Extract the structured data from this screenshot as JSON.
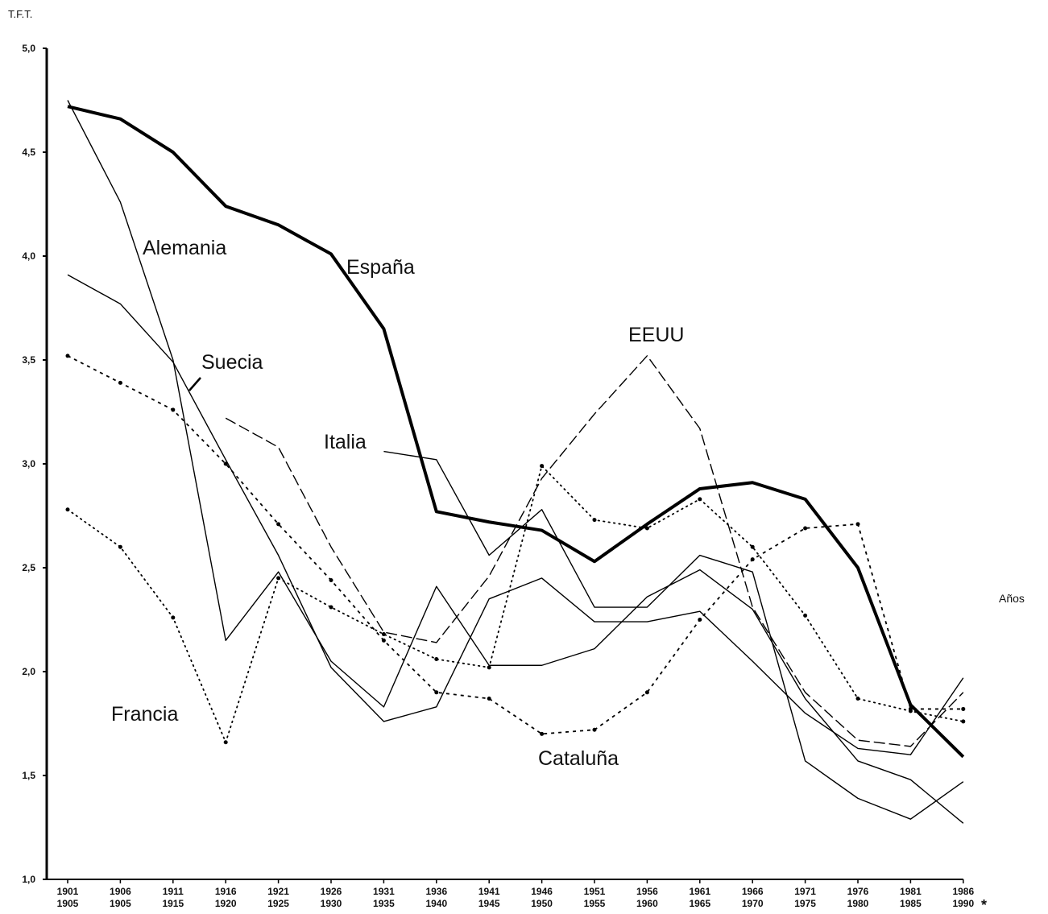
{
  "chart_data": {
    "type": "line",
    "y_label": "T.F.T.",
    "x_label": "Años",
    "footnote": "*",
    "categories": [
      [
        "1901",
        "1905"
      ],
      [
        "1906",
        "1905"
      ],
      [
        "1911",
        "1915"
      ],
      [
        "1916",
        "1920"
      ],
      [
        "1921",
        "1925"
      ],
      [
        "1926",
        "1930"
      ],
      [
        "1931",
        "1935"
      ],
      [
        "1936",
        "1940"
      ],
      [
        "1941",
        "1945"
      ],
      [
        "1946",
        "1950"
      ],
      [
        "1951",
        "1955"
      ],
      [
        "1956",
        "1960"
      ],
      [
        "1961",
        "1965"
      ],
      [
        "1966",
        "1970"
      ],
      [
        "1971",
        "1975"
      ],
      [
        "1976",
        "1980"
      ],
      [
        "1981",
        "1985"
      ],
      [
        "1986",
        "1990"
      ]
    ],
    "ylim": [
      1,
      5
    ],
    "yticks": [
      {
        "value": 1,
        "label": "1,0"
      },
      {
        "value": 1.5,
        "label": "1,5"
      },
      {
        "value": 2,
        "label": "2,0"
      },
      {
        "value": 2.5,
        "label": "2,5"
      },
      {
        "value": 3,
        "label": "3,0"
      },
      {
        "value": 3.5,
        "label": "3,5"
      },
      {
        "value": 4,
        "label": "4,0"
      },
      {
        "value": 4.5,
        "label": "4,5"
      },
      {
        "value": 5,
        "label": "5,0"
      }
    ],
    "series": [
      {
        "name": "España",
        "color": "#000000",
        "style": "thick",
        "values": [
          4.72,
          4.66,
          4.5,
          4.24,
          4.15,
          4.01,
          3.65,
          2.77,
          2.72,
          2.68,
          2.53,
          2.71,
          2.88,
          2.91,
          2.83,
          2.5,
          1.84,
          1.59
        ]
      },
      {
        "name": "Alemania",
        "color": "#000000",
        "style": "solid",
        "values": [
          4.75,
          4.26,
          3.5,
          2.15,
          2.48,
          2.05,
          1.83,
          2.41,
          2.03,
          2.03,
          2.11,
          2.36,
          2.49,
          2.3,
          1.87,
          1.57,
          1.48,
          1.27
        ]
      },
      {
        "name": "Suecia",
        "color": "#000000",
        "style": "solid",
        "values": [
          3.91,
          3.77,
          3.49,
          3.02,
          2.56,
          2.02,
          1.76,
          1.83,
          2.35,
          2.45,
          2.24,
          2.24,
          2.29,
          2.05,
          1.8,
          1.63,
          1.6,
          1.97
        ]
      },
      {
        "name": "Italia",
        "color": "#000000",
        "style": "solid",
        "values": [
          null,
          null,
          null,
          null,
          null,
          null,
          3.06,
          3.02,
          2.56,
          2.78,
          2.31,
          2.31,
          2.56,
          2.48,
          1.57,
          1.39,
          1.29,
          1.47
        ]
      },
      {
        "name": "EEUU",
        "color": "#000000",
        "style": "longdash",
        "values": [
          null,
          null,
          null,
          3.22,
          3.08,
          2.6,
          2.19,
          2.14,
          2.46,
          2.93,
          3.24,
          3.52,
          3.17,
          2.31,
          1.9,
          1.67,
          1.64,
          1.9
        ]
      },
      {
        "name": "Cataluña",
        "color": "#000000",
        "style": "dashed",
        "values": [
          3.52,
          3.39,
          3.26,
          3.0,
          2.71,
          2.44,
          2.15,
          1.9,
          1.87,
          1.7,
          1.72,
          1.9,
          2.25,
          2.54,
          2.69,
          2.71,
          1.82,
          1.82
        ]
      },
      {
        "name": "Francia",
        "color": "#000000",
        "style": "dotted",
        "values": [
          2.78,
          2.6,
          2.26,
          1.66,
          2.45,
          2.31,
          2.18,
          2.06,
          2.02,
          2.99,
          2.73,
          2.69,
          2.83,
          2.6,
          2.27,
          1.87,
          1.81,
          1.76
        ]
      }
    ]
  }
}
